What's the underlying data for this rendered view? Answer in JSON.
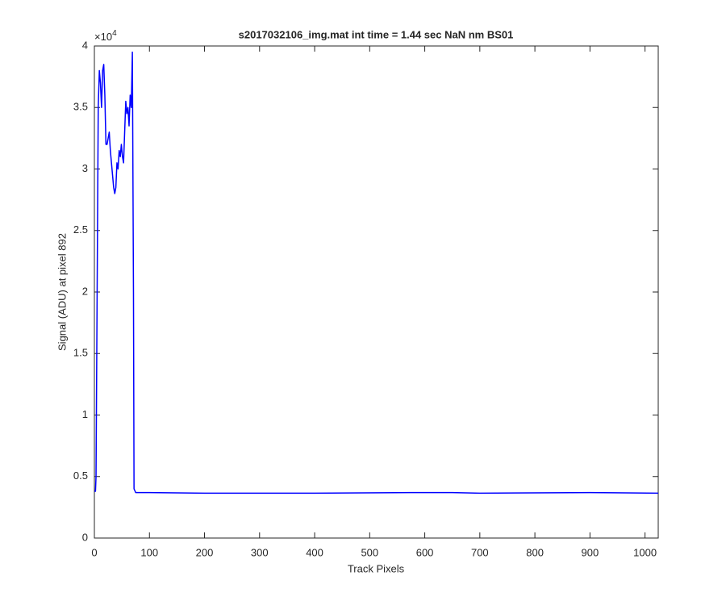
{
  "chart_data": {
    "type": "line",
    "title": "s2017032106_img.mat int time = 1.44 sec  NaN nm BS01",
    "x_label": "Track Pixels",
    "y_label": "Signal (ADU) at pixel 892",
    "y_multiplier": {
      "base": "×10",
      "power": "4"
    },
    "x": [
      0,
      2,
      3,
      5,
      7,
      9,
      11,
      13,
      15,
      17,
      19,
      21,
      23,
      25,
      27,
      29,
      31,
      33,
      35,
      37,
      39,
      41,
      43,
      45,
      47,
      49,
      51,
      53,
      55,
      57,
      59,
      61,
      63,
      65,
      67,
      69,
      71,
      72,
      75,
      100,
      200,
      400,
      600,
      650,
      700,
      900,
      1024
    ],
    "series": [
      {
        "color": "#0000ff",
        "values": [
          0.38,
          0.38,
          0.5,
          2.0,
          3.5,
          3.8,
          3.7,
          3.5,
          3.8,
          3.85,
          3.6,
          3.2,
          3.2,
          3.25,
          3.3,
          3.15,
          3.05,
          2.95,
          2.85,
          2.8,
          2.85,
          3.05,
          3.0,
          3.15,
          3.1,
          3.2,
          3.1,
          3.05,
          3.3,
          3.55,
          3.45,
          3.5,
          3.35,
          3.6,
          3.5,
          3.95,
          2.0,
          0.4,
          0.37,
          0.37,
          0.365,
          0.365,
          0.37,
          0.37,
          0.365,
          0.37,
          0.365
        ]
      }
    ],
    "xlim": [
      0,
      1024
    ],
    "xticks": [
      0,
      100,
      200,
      300,
      400,
      500,
      600,
      700,
      800,
      900,
      1000
    ],
    "ylim": [
      0,
      4
    ],
    "yticks": [
      0,
      0.5,
      1,
      1.5,
      2,
      2.5,
      3,
      3.5,
      4
    ],
    "grid": false
  }
}
